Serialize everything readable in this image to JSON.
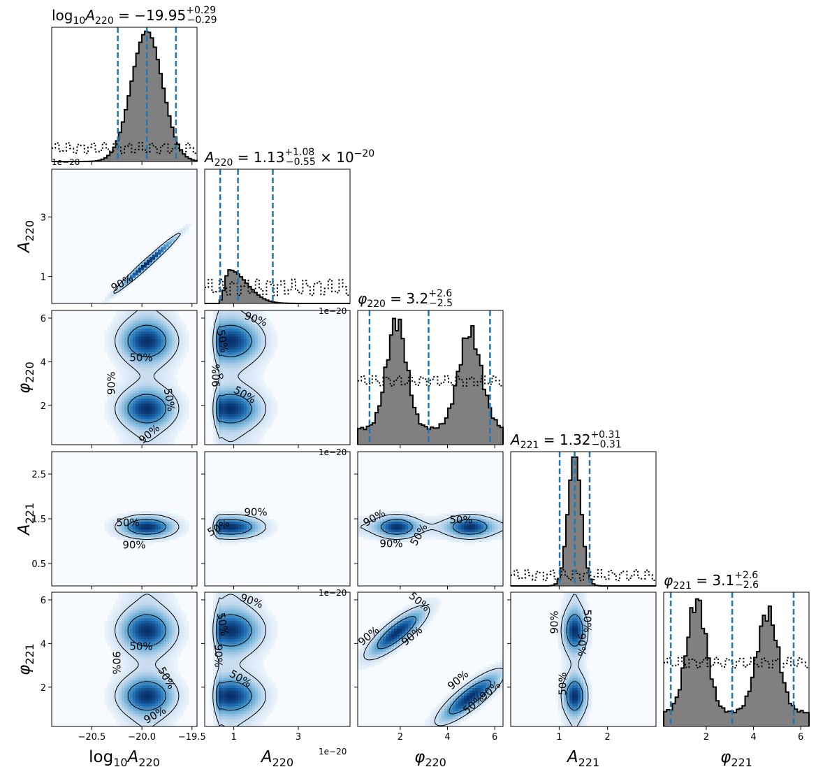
{
  "chart_data": {
    "type": "corner",
    "parameters": [
      "log10_A220",
      "A220",
      "phi220",
      "A221",
      "phi221"
    ],
    "axis_labels": [
      {
        "main": "log",
        "sub": "10",
        "mid": "A",
        "sub2": "220"
      },
      {
        "main": "A",
        "sub": "220"
      },
      {
        "main": "φ",
        "sub": "220"
      },
      {
        "main": "A",
        "sub": "221"
      },
      {
        "main": "φ",
        "sub": "221"
      }
    ],
    "ranges": [
      [
        -20.9,
        -19.45
      ],
      [
        0.1,
        4.6
      ],
      [
        0.2,
        6.35
      ],
      [
        0.0,
        3.0
      ],
      [
        0.2,
        6.35
      ]
    ],
    "ticks": [
      {
        "values": [
          -20.5,
          -20.0,
          -19.5
        ],
        "labels": [
          "−20.5",
          "−20.0",
          "−19.5"
        ]
      },
      {
        "values": [
          1,
          3
        ],
        "labels": [
          "1",
          "3"
        ]
      },
      {
        "values": [
          2,
          4,
          6
        ],
        "labels": [
          "2",
          "4",
          "6"
        ]
      },
      {
        "values": [
          0.5,
          1.5,
          2.5
        ],
        "labels": [
          "0.5",
          "1.5",
          "2.5"
        ],
        "x_values": [
          1,
          2
        ],
        "x_labels": [
          "1",
          "2"
        ]
      },
      {
        "values": [
          2,
          4,
          6
        ],
        "labels": [
          "2",
          "4",
          "6"
        ]
      }
    ],
    "offset_text": "1e−20",
    "titles": [
      {
        "lhs": "log10A220",
        "median": "−19.95",
        "plus": "+0.29",
        "minus": "−0.29",
        "suffix": ""
      },
      {
        "lhs": "A220",
        "median": "1.13",
        "plus": "+1.08",
        "minus": "−0.55",
        "suffix": "× 10−20"
      },
      {
        "lhs": "φ220",
        "median": "3.2",
        "plus": "+2.6",
        "minus": "−2.5",
        "suffix": ""
      },
      {
        "lhs": "A221",
        "median": "1.32",
        "plus": "+0.31",
        "minus": "−0.31",
        "suffix": ""
      },
      {
        "lhs": "φ221",
        "median": "3.1",
        "plus": "+2.6",
        "minus": "−2.6",
        "suffix": ""
      }
    ],
    "quantiles": [
      [
        -20.24,
        -19.95,
        -19.66
      ],
      [
        0.58,
        1.13,
        2.21
      ],
      [
        0.7,
        3.2,
        5.8
      ],
      [
        1.01,
        1.32,
        1.63
      ],
      [
        0.5,
        3.1,
        5.7
      ]
    ],
    "histograms": [
      {
        "median": -19.95,
        "sigma": 0.155,
        "prior_level": 0.1
      },
      {
        "shape": "skewed",
        "peak": 0.8,
        "prior_level": 0.08
      },
      {
        "shape": "bimodal",
        "modes": [
          1.85,
          4.95
        ],
        "prior_level": 0.5
      },
      {
        "median": 1.32,
        "sigma": 0.14,
        "prior_level": 0.08
      },
      {
        "shape": "bimodal",
        "modes": [
          1.6,
          4.6
        ],
        "prior_level": 0.5
      }
    ],
    "contour_labels": [
      "50%",
      "90%"
    ],
    "colormap": [
      "#f7fbff",
      "#c6dbef",
      "#6baed6",
      "#2171b5",
      "#08306b"
    ],
    "quantile_color": "#1f77b4",
    "hist_fill": "#808080"
  }
}
